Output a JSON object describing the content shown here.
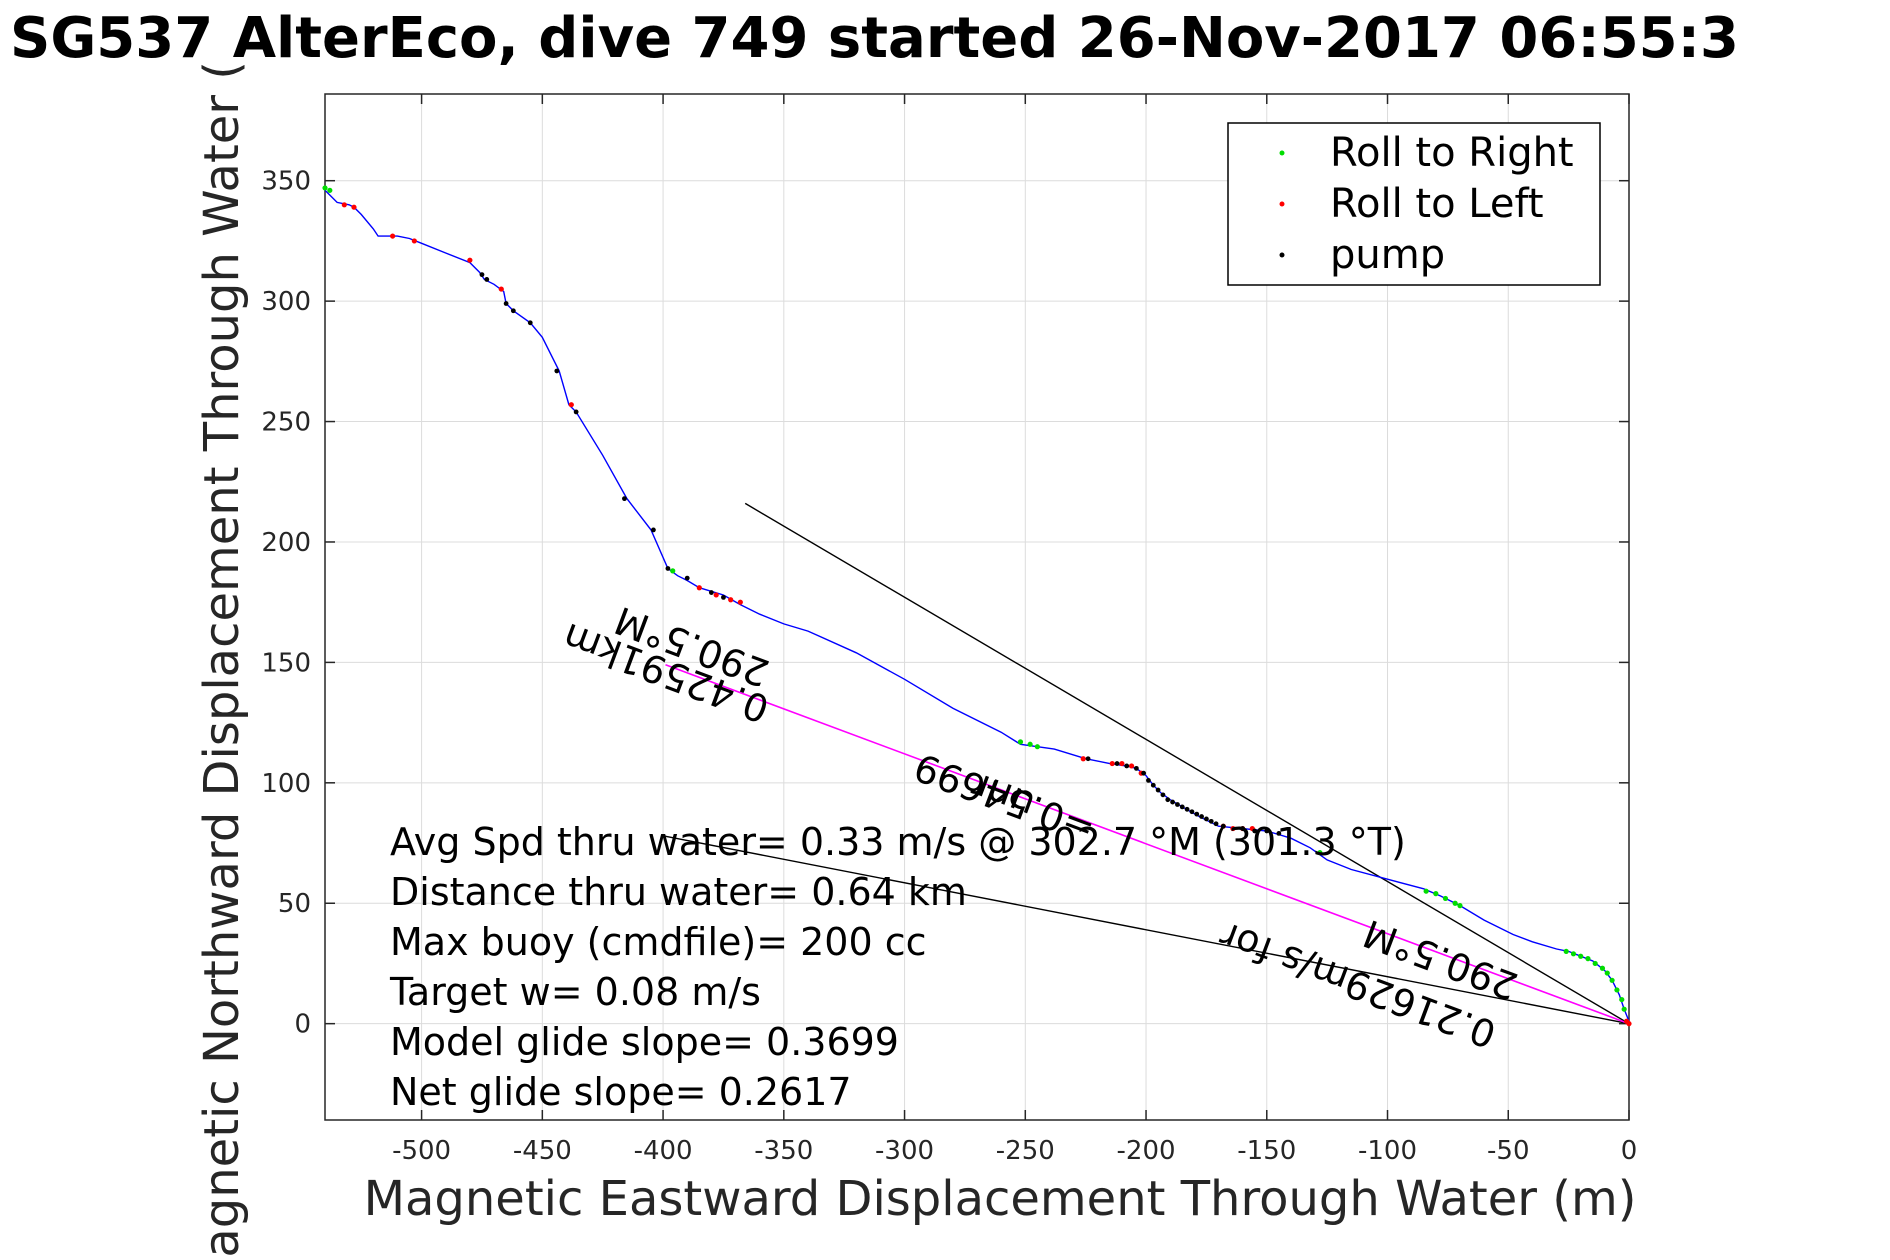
{
  "chart_data": {
    "type": "line",
    "title": "SG537 AlterEco, dive 749 started 26-Nov-2017 06:55:3",
    "xlabel": "Magnetic Eastward Displacement Through Water (m)",
    "ylabel": "Magnetic Northward Displacement Through Water (",
    "xlim": [
      -540,
      0
    ],
    "ylim": [
      -40,
      386
    ],
    "grid": true,
    "legend_position": "top-right",
    "x_ticks": [
      "-500",
      "-450",
      "-400",
      "-350",
      "-300",
      "-250",
      "-200",
      "-150",
      "-100",
      "-50",
      "0"
    ],
    "x_tick_values": [
      -500,
      -450,
      -400,
      -350,
      -300,
      -250,
      -200,
      -150,
      -100,
      -50,
      0
    ],
    "y_ticks": [
      "0",
      "50",
      "100",
      "150",
      "200",
      "250",
      "300",
      "350"
    ],
    "y_tick_values": [
      0,
      50,
      100,
      150,
      200,
      250,
      300,
      350
    ],
    "colors": {
      "track": "#0000ff",
      "roll_right": "#00dd00",
      "roll_left": "#ff0000",
      "pump": "#000000",
      "current_line": "#ff00ff",
      "reference_line": "#000000",
      "grid": "#dcdcdc"
    },
    "legend": [
      {
        "label": "Roll to Right",
        "color": "#00dd00"
      },
      {
        "label": "Roll to Left",
        "color": "#ff0000"
      },
      {
        "label": "pump",
        "color": "#000000"
      }
    ],
    "track": [
      [
        -540,
        346
      ],
      [
        -535,
        341
      ],
      [
        -530,
        340
      ],
      [
        -528,
        339
      ],
      [
        -525,
        336
      ],
      [
        -520,
        330
      ],
      [
        -518,
        327
      ],
      [
        -510,
        327
      ],
      [
        -505,
        326
      ],
      [
        -500,
        324
      ],
      [
        -490,
        320
      ],
      [
        -480,
        316
      ],
      [
        -476,
        312
      ],
      [
        -474,
        309
      ],
      [
        -470,
        307
      ],
      [
        -466,
        304
      ],
      [
        -465,
        299
      ],
      [
        -462,
        296
      ],
      [
        -455,
        291
      ],
      [
        -450,
        285
      ],
      [
        -443,
        271
      ],
      [
        -439,
        257
      ],
      [
        -436,
        254
      ],
      [
        -425,
        236
      ],
      [
        -415,
        218
      ],
      [
        -405,
        205
      ],
      [
        -398,
        189
      ],
      [
        -394,
        186
      ],
      [
        -390,
        184
      ],
      [
        -385,
        181
      ],
      [
        -375,
        178
      ],
      [
        -368,
        174
      ],
      [
        -360,
        170
      ],
      [
        -350,
        166
      ],
      [
        -340,
        163
      ],
      [
        -320,
        154
      ],
      [
        -300,
        143
      ],
      [
        -280,
        131
      ],
      [
        -260,
        121
      ],
      [
        -252,
        116
      ],
      [
        -245,
        115
      ],
      [
        -238,
        114
      ],
      [
        -225,
        110
      ],
      [
        -215,
        108
      ],
      [
        -208,
        107
      ],
      [
        -204,
        106
      ],
      [
        -200,
        103
      ],
      [
        -197,
        99
      ],
      [
        -194,
        96
      ],
      [
        -190,
        93
      ],
      [
        -185,
        90
      ],
      [
        -178,
        86
      ],
      [
        -170,
        82
      ],
      [
        -160,
        81
      ],
      [
        -150,
        80
      ],
      [
        -140,
        77
      ],
      [
        -132,
        73
      ],
      [
        -125,
        68
      ],
      [
        -115,
        64
      ],
      [
        -100,
        60
      ],
      [
        -85,
        56
      ],
      [
        -78,
        53
      ],
      [
        -70,
        49
      ],
      [
        -60,
        43
      ],
      [
        -48,
        37
      ],
      [
        -40,
        34
      ],
      [
        -30,
        31
      ],
      [
        -25,
        30
      ],
      [
        -20,
        28
      ],
      [
        -15,
        26
      ],
      [
        -10,
        22
      ],
      [
        -7,
        18
      ],
      [
        -4,
        12
      ],
      [
        -2,
        6
      ],
      [
        0,
        1
      ]
    ],
    "points_roll_right": [
      [
        -540,
        347
      ],
      [
        -538,
        346
      ],
      [
        -396,
        188
      ],
      [
        -252,
        117
      ],
      [
        -248,
        116
      ],
      [
        -245,
        115
      ],
      [
        -128,
        71
      ],
      [
        -84,
        55
      ],
      [
        -80,
        54
      ],
      [
        -76,
        52
      ],
      [
        -72,
        50
      ],
      [
        -70,
        49
      ],
      [
        -26,
        30
      ],
      [
        -23,
        29
      ],
      [
        -20,
        28
      ],
      [
        -17,
        27
      ],
      [
        -14,
        25
      ],
      [
        -11,
        23
      ],
      [
        -9,
        21
      ],
      [
        -7,
        18
      ],
      [
        -5,
        14
      ],
      [
        -3,
        10
      ],
      [
        -2,
        6
      ]
    ],
    "points_roll_left": [
      [
        -532,
        340
      ],
      [
        -528,
        339
      ],
      [
        -512,
        327
      ],
      [
        -503,
        325
      ],
      [
        -480,
        317
      ],
      [
        -467,
        305
      ],
      [
        -438,
        257
      ],
      [
        -385,
        181
      ],
      [
        -378,
        178
      ],
      [
        -372,
        176
      ],
      [
        -368,
        175
      ],
      [
        -226,
        110
      ],
      [
        -214,
        108
      ],
      [
        -210,
        108
      ],
      [
        -206,
        107
      ],
      [
        -202,
        104
      ],
      [
        -168,
        82
      ],
      [
        -164,
        81
      ],
      [
        -160,
        81
      ],
      [
        -156,
        81
      ],
      [
        -1,
        1
      ],
      [
        0,
        0
      ]
    ],
    "points_pump": [
      [
        -475,
        311
      ],
      [
        -473,
        309
      ],
      [
        -465,
        299
      ],
      [
        -462,
        296
      ],
      [
        -455,
        291
      ],
      [
        -444,
        271
      ],
      [
        -436,
        254
      ],
      [
        -416,
        218
      ],
      [
        -404,
        205
      ],
      [
        -398,
        189
      ],
      [
        -390,
        185
      ],
      [
        -380,
        179
      ],
      [
        -375,
        177
      ],
      [
        -224,
        110
      ],
      [
        -212,
        108
      ],
      [
        -208,
        107
      ],
      [
        -204,
        106
      ],
      [
        -201,
        104
      ],
      [
        -199,
        101
      ],
      [
        -197,
        99
      ],
      [
        -195,
        97
      ],
      [
        -193,
        95
      ],
      [
        -191,
        93
      ],
      [
        -189,
        92
      ],
      [
        -187,
        91
      ],
      [
        -185,
        90
      ],
      [
        -183,
        89
      ],
      [
        -181,
        88
      ],
      [
        -179,
        87
      ],
      [
        -177,
        86
      ],
      [
        -175,
        85
      ],
      [
        -173,
        84
      ],
      [
        -171,
        83
      ],
      [
        -168,
        82
      ],
      [
        -160,
        81
      ],
      [
        -155,
        80
      ],
      [
        -150,
        80
      ],
      [
        -145,
        79
      ]
    ],
    "current_line": [
      [
        -399,
        149
      ],
      [
        0,
        0
      ]
    ],
    "reference_lines": [
      [
        [
          -366,
          216
        ],
        [
          0,
          0
        ]
      ],
      [
        [
          -400,
          78
        ],
        [
          0,
          0
        ]
      ]
    ],
    "annotations": [
      {
        "text": "290.5°M",
        "x": -355,
        "y": 150,
        "angle": 200.5
      },
      {
        "text": "0.42591km",
        "x": -355,
        "y": 135,
        "angle": 200.5
      },
      {
        "text": "=0.54699",
        "x": -220,
        "y": 85,
        "angle": 200.5
      },
      {
        "text": "unr",
        "x": -245,
        "y": 95,
        "angle": 200.5
      },
      {
        "text": "0.21629m/s for",
        "x": -54,
        "y": 0,
        "angle": 200.5
      },
      {
        "text": "290.5°M",
        "x": -45,
        "y": 20,
        "angle": 200.5
      }
    ],
    "stats": [
      "Avg Spd thru water=  0.33 m/s @ 302.7 °M (301.3 °T)",
      "Distance thru water=  0.64 km",
      "Max buoy (cmdfile)= 200 cc",
      "Target w= 0.08 m/s",
      "Model glide slope= 0.3699",
      "Net glide slope= 0.2617"
    ]
  }
}
